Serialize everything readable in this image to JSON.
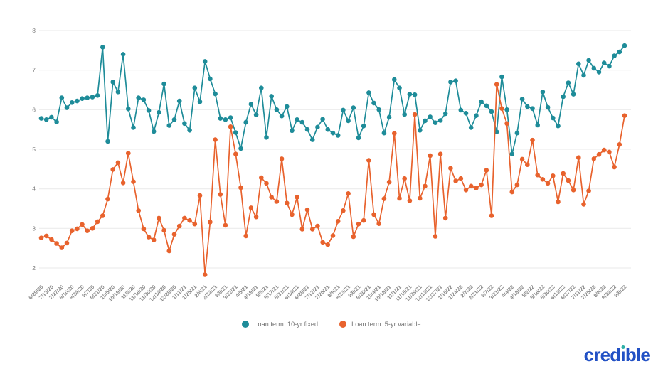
{
  "chart_data": {
    "type": "line",
    "title": "",
    "xlabel": "",
    "ylabel": "",
    "y_ticks": [
      2,
      3,
      4,
      5,
      6,
      7,
      8
    ],
    "ylim": [
      1.6,
      8.3
    ],
    "grid": "horizontal",
    "legend_position": "bottom-center",
    "points_per_tick": 2,
    "x_tick_labels": [
      "6/29/20",
      "7/13/20",
      "7/27/20",
      "8/10/20",
      "8/24/20",
      "9/7/20",
      "9/21/20",
      "10/5/20",
      "10/19/20",
      "11/2/20",
      "11/16/20",
      "11/30/20",
      "12/14/20",
      "12/28/20",
      "1/11/21",
      "1/25/21",
      "2/8/21",
      "2/22/21",
      "3/8/21",
      "3/22/21",
      "4/5/21",
      "4/19/21",
      "5/3/21",
      "5/17/21",
      "5/31/21",
      "6/14/21",
      "6/28/21",
      "7/12/21",
      "7/26/21",
      "8/9/21",
      "8/23/21",
      "9/6/21",
      "9/20/21",
      "10/4/21",
      "10/18/21",
      "11/1/21",
      "11/15/21",
      "11/29/21",
      "12/13/21",
      "12/27/21",
      "1/10/22",
      "1/24/22",
      "2/7/22",
      "2/21/22",
      "3/7/22",
      "3/21/22",
      "4/4/22",
      "4/18/22",
      "5/2/22",
      "5/16/22",
      "5/30/22",
      "6/13/22",
      "6/27/22",
      "7/11/22",
      "7/25/22",
      "8/8/22",
      "8/22/22",
      "9/6/22"
    ],
    "series": [
      {
        "name": "Loan term: 10-yr fixed",
        "color": "#1e8c99",
        "values": [
          5.78,
          5.75,
          5.81,
          5.69,
          6.3,
          6.05,
          6.18,
          6.22,
          6.28,
          6.3,
          6.32,
          6.36,
          7.58,
          5.2,
          6.7,
          6.45,
          7.4,
          6.02,
          5.55,
          6.3,
          6.25,
          5.98,
          5.45,
          5.93,
          6.65,
          5.6,
          5.75,
          6.22,
          5.65,
          5.48,
          6.55,
          6.2,
          7.22,
          6.78,
          6.4,
          5.78,
          5.75,
          5.8,
          5.42,
          5.02,
          5.68,
          6.14,
          5.87,
          6.55,
          5.3,
          6.34,
          6.0,
          5.84,
          6.08,
          5.47,
          5.75,
          5.68,
          5.5,
          5.24,
          5.56,
          5.76,
          5.5,
          5.41,
          5.35,
          5.99,
          5.72,
          6.05,
          5.29,
          5.59,
          6.43,
          6.17,
          6.0,
          5.41,
          5.81,
          6.76,
          6.55,
          5.88,
          6.39,
          6.38,
          5.48,
          5.72,
          5.82,
          5.67,
          5.73,
          5.9,
          6.7,
          6.73,
          5.99,
          5.91,
          5.55,
          5.85,
          6.2,
          6.1,
          5.95,
          5.44,
          6.83,
          6.0,
          4.88,
          5.41,
          6.27,
          6.08,
          6.03,
          5.61,
          6.45,
          6.06,
          5.79,
          5.59,
          6.33,
          6.68,
          6.39,
          7.16,
          6.87,
          7.25,
          7.05,
          6.95,
          7.18,
          7.1,
          7.36,
          7.46,
          7.62
        ]
      },
      {
        "name": "Loan term: 5-yr variable",
        "color": "#e8622d",
        "values": [
          2.76,
          2.81,
          2.72,
          2.62,
          2.51,
          2.63,
          2.94,
          2.99,
          3.1,
          2.94,
          3.0,
          3.17,
          3.32,
          3.74,
          4.49,
          4.66,
          4.15,
          4.9,
          4.18,
          3.45,
          2.99,
          2.78,
          2.71,
          3.26,
          2.95,
          2.43,
          2.85,
          3.06,
          3.26,
          3.2,
          3.11,
          3.83,
          1.83,
          3.16,
          5.24,
          3.86,
          3.08,
          5.57,
          4.88,
          4.03,
          2.81,
          3.52,
          3.29,
          4.28,
          4.14,
          3.79,
          3.68,
          4.76,
          3.64,
          3.35,
          3.79,
          2.98,
          3.47,
          2.98,
          3.06,
          2.65,
          2.59,
          2.82,
          3.18,
          3.45,
          3.88,
          2.79,
          3.11,
          3.2,
          4.72,
          3.35,
          3.12,
          3.75,
          4.17,
          5.4,
          3.76,
          4.26,
          3.7,
          5.88,
          3.76,
          4.07,
          4.84,
          2.8,
          4.88,
          3.26,
          4.52,
          4.2,
          4.26,
          3.97,
          4.07,
          4.02,
          4.1,
          4.47,
          3.32,
          6.64,
          6.03,
          5.65,
          3.92,
          4.1,
          4.75,
          4.61,
          5.23,
          4.35,
          4.24,
          4.14,
          4.33,
          3.67,
          4.39,
          4.21,
          3.97,
          4.79,
          3.61,
          3.95,
          4.76,
          4.87,
          4.98,
          4.93,
          4.55,
          5.12,
          5.85
        ]
      }
    ]
  },
  "legend": {
    "items": [
      {
        "label": "Loan term: 10-yr fixed",
        "swatch": "teal-dot"
      },
      {
        "label": "Loan term: 5-yr variable",
        "swatch": "orange-dot"
      }
    ]
  },
  "branding": {
    "name": "credible",
    "color": "#2251c5",
    "i_dot_color": "#2fb0a7",
    "wordmark_parts": {
      "before_i": "cred",
      "dotless_i": "ı",
      "after_i": "ble"
    }
  }
}
